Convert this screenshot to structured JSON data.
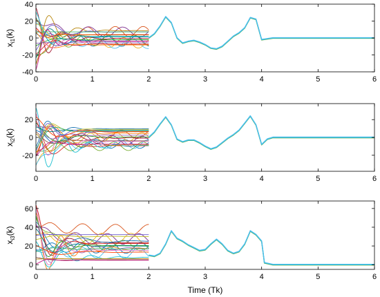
{
  "chart_data": [
    {
      "type": "line",
      "ylabel_main": "x",
      "ylabel_sub": "i1",
      "ylabel_tail": "(k)",
      "xlim": [
        0,
        6
      ],
      "ylim": [
        -40,
        40
      ],
      "xticks": [
        0,
        1,
        2,
        3,
        4,
        5,
        6
      ],
      "yticks": [
        -40,
        -20,
        0,
        20,
        40
      ],
      "grid": false,
      "consensus": {
        "t": [
          2,
          2.1,
          2.2,
          2.3,
          2.4,
          2.5,
          2.6,
          2.7,
          2.8,
          2.9,
          3.0,
          3.1,
          3.2,
          3.3,
          3.4,
          3.5,
          3.6,
          3.7,
          3.8,
          3.9,
          4.0,
          4.1,
          4.2,
          5,
          6
        ],
        "y": [
          0,
          5,
          14,
          25,
          18,
          0,
          -6,
          -4,
          -3,
          -5,
          -8,
          -12,
          -13,
          -10,
          -4,
          2,
          6,
          12,
          24,
          22,
          -2,
          -1,
          0,
          0,
          0
        ]
      },
      "transient": {
        "t0": 0,
        "t1": 2,
        "series_count": 22,
        "init_range": [
          -38,
          38
        ],
        "settle_range": [
          -10,
          10
        ],
        "oscillating_series": 6,
        "oscillation_amplitude": 20,
        "oscillation_peaks_y": 28
      }
    },
    {
      "type": "line",
      "ylabel_main": "x",
      "ylabel_sub": "i2",
      "ylabel_tail": "(k)",
      "xlim": [
        0,
        6
      ],
      "ylim": [
        -38,
        38
      ],
      "xticks": [
        0,
        1,
        2,
        3,
        4,
        5,
        6
      ],
      "yticks": [
        -20,
        0,
        20
      ],
      "grid": false,
      "consensus": {
        "t": [
          2,
          2.1,
          2.2,
          2.3,
          2.4,
          2.5,
          2.6,
          2.7,
          2.8,
          2.9,
          3.0,
          3.1,
          3.2,
          3.3,
          3.4,
          3.5,
          3.6,
          3.7,
          3.8,
          3.9,
          4.0,
          4.1,
          4.2,
          5,
          6
        ],
        "y": [
          0,
          6,
          15,
          23,
          14,
          -2,
          -5,
          -3,
          -3,
          -6,
          -10,
          -13,
          -11,
          -6,
          -1,
          3,
          8,
          16,
          24,
          14,
          -8,
          -2,
          0,
          0,
          0
        ]
      },
      "transient": {
        "t0": 0,
        "t1": 2,
        "series_count": 22,
        "init_range": [
          -35,
          35
        ],
        "settle_range": [
          -10,
          10
        ],
        "oscillating_series": 6,
        "oscillation_amplitude": 16,
        "oscillation_peaks_y": 20
      }
    },
    {
      "type": "line",
      "ylabel_main": "x",
      "ylabel_sub": "i3",
      "ylabel_tail": "(k)",
      "xlim": [
        0,
        6
      ],
      "ylim": [
        -5,
        68
      ],
      "xticks": [
        0,
        1,
        2,
        3,
        4,
        5,
        6
      ],
      "yticks": [
        0,
        20,
        40,
        60
      ],
      "grid": false,
      "consensus": {
        "t": [
          2,
          2.1,
          2.2,
          2.3,
          2.4,
          2.5,
          2.6,
          2.7,
          2.8,
          2.9,
          3.0,
          3.1,
          3.2,
          3.3,
          3.4,
          3.5,
          3.6,
          3.7,
          3.8,
          3.9,
          4.0,
          4.05,
          4.2,
          5,
          6
        ],
        "y": [
          10,
          9,
          12,
          22,
          36,
          28,
          25,
          21,
          18,
          15,
          16,
          22,
          27,
          22,
          15,
          12,
          14,
          22,
          36,
          32,
          25,
          2,
          0,
          0,
          0
        ]
      },
      "transient": {
        "t0": 0,
        "t1": 2,
        "series_count": 22,
        "init_range": [
          0,
          65
        ],
        "settle_range": [
          0,
          35
        ],
        "oscillating_series": 6,
        "oscillation_amplitude": 14,
        "oscillation_peaks_y": 40
      }
    }
  ],
  "xlabel": "Time (Tk)",
  "colors": [
    "#0072BD",
    "#D95319",
    "#EDB120",
    "#7E2F8E",
    "#77AC30",
    "#4DBEEE",
    "#A2142F",
    "#1f77b4",
    "#ff7f0e",
    "#2ca02c",
    "#d62728",
    "#9467bd",
    "#8c564b",
    "#e377c2",
    "#17becf",
    "#bcbd22",
    "#008080",
    "#b8860b",
    "#6a5acd",
    "#c71585",
    "#3cb371",
    "#ff4500"
  ],
  "consensus_colors": [
    "#77AC30",
    "#17becf",
    "#4DBEEE"
  ]
}
